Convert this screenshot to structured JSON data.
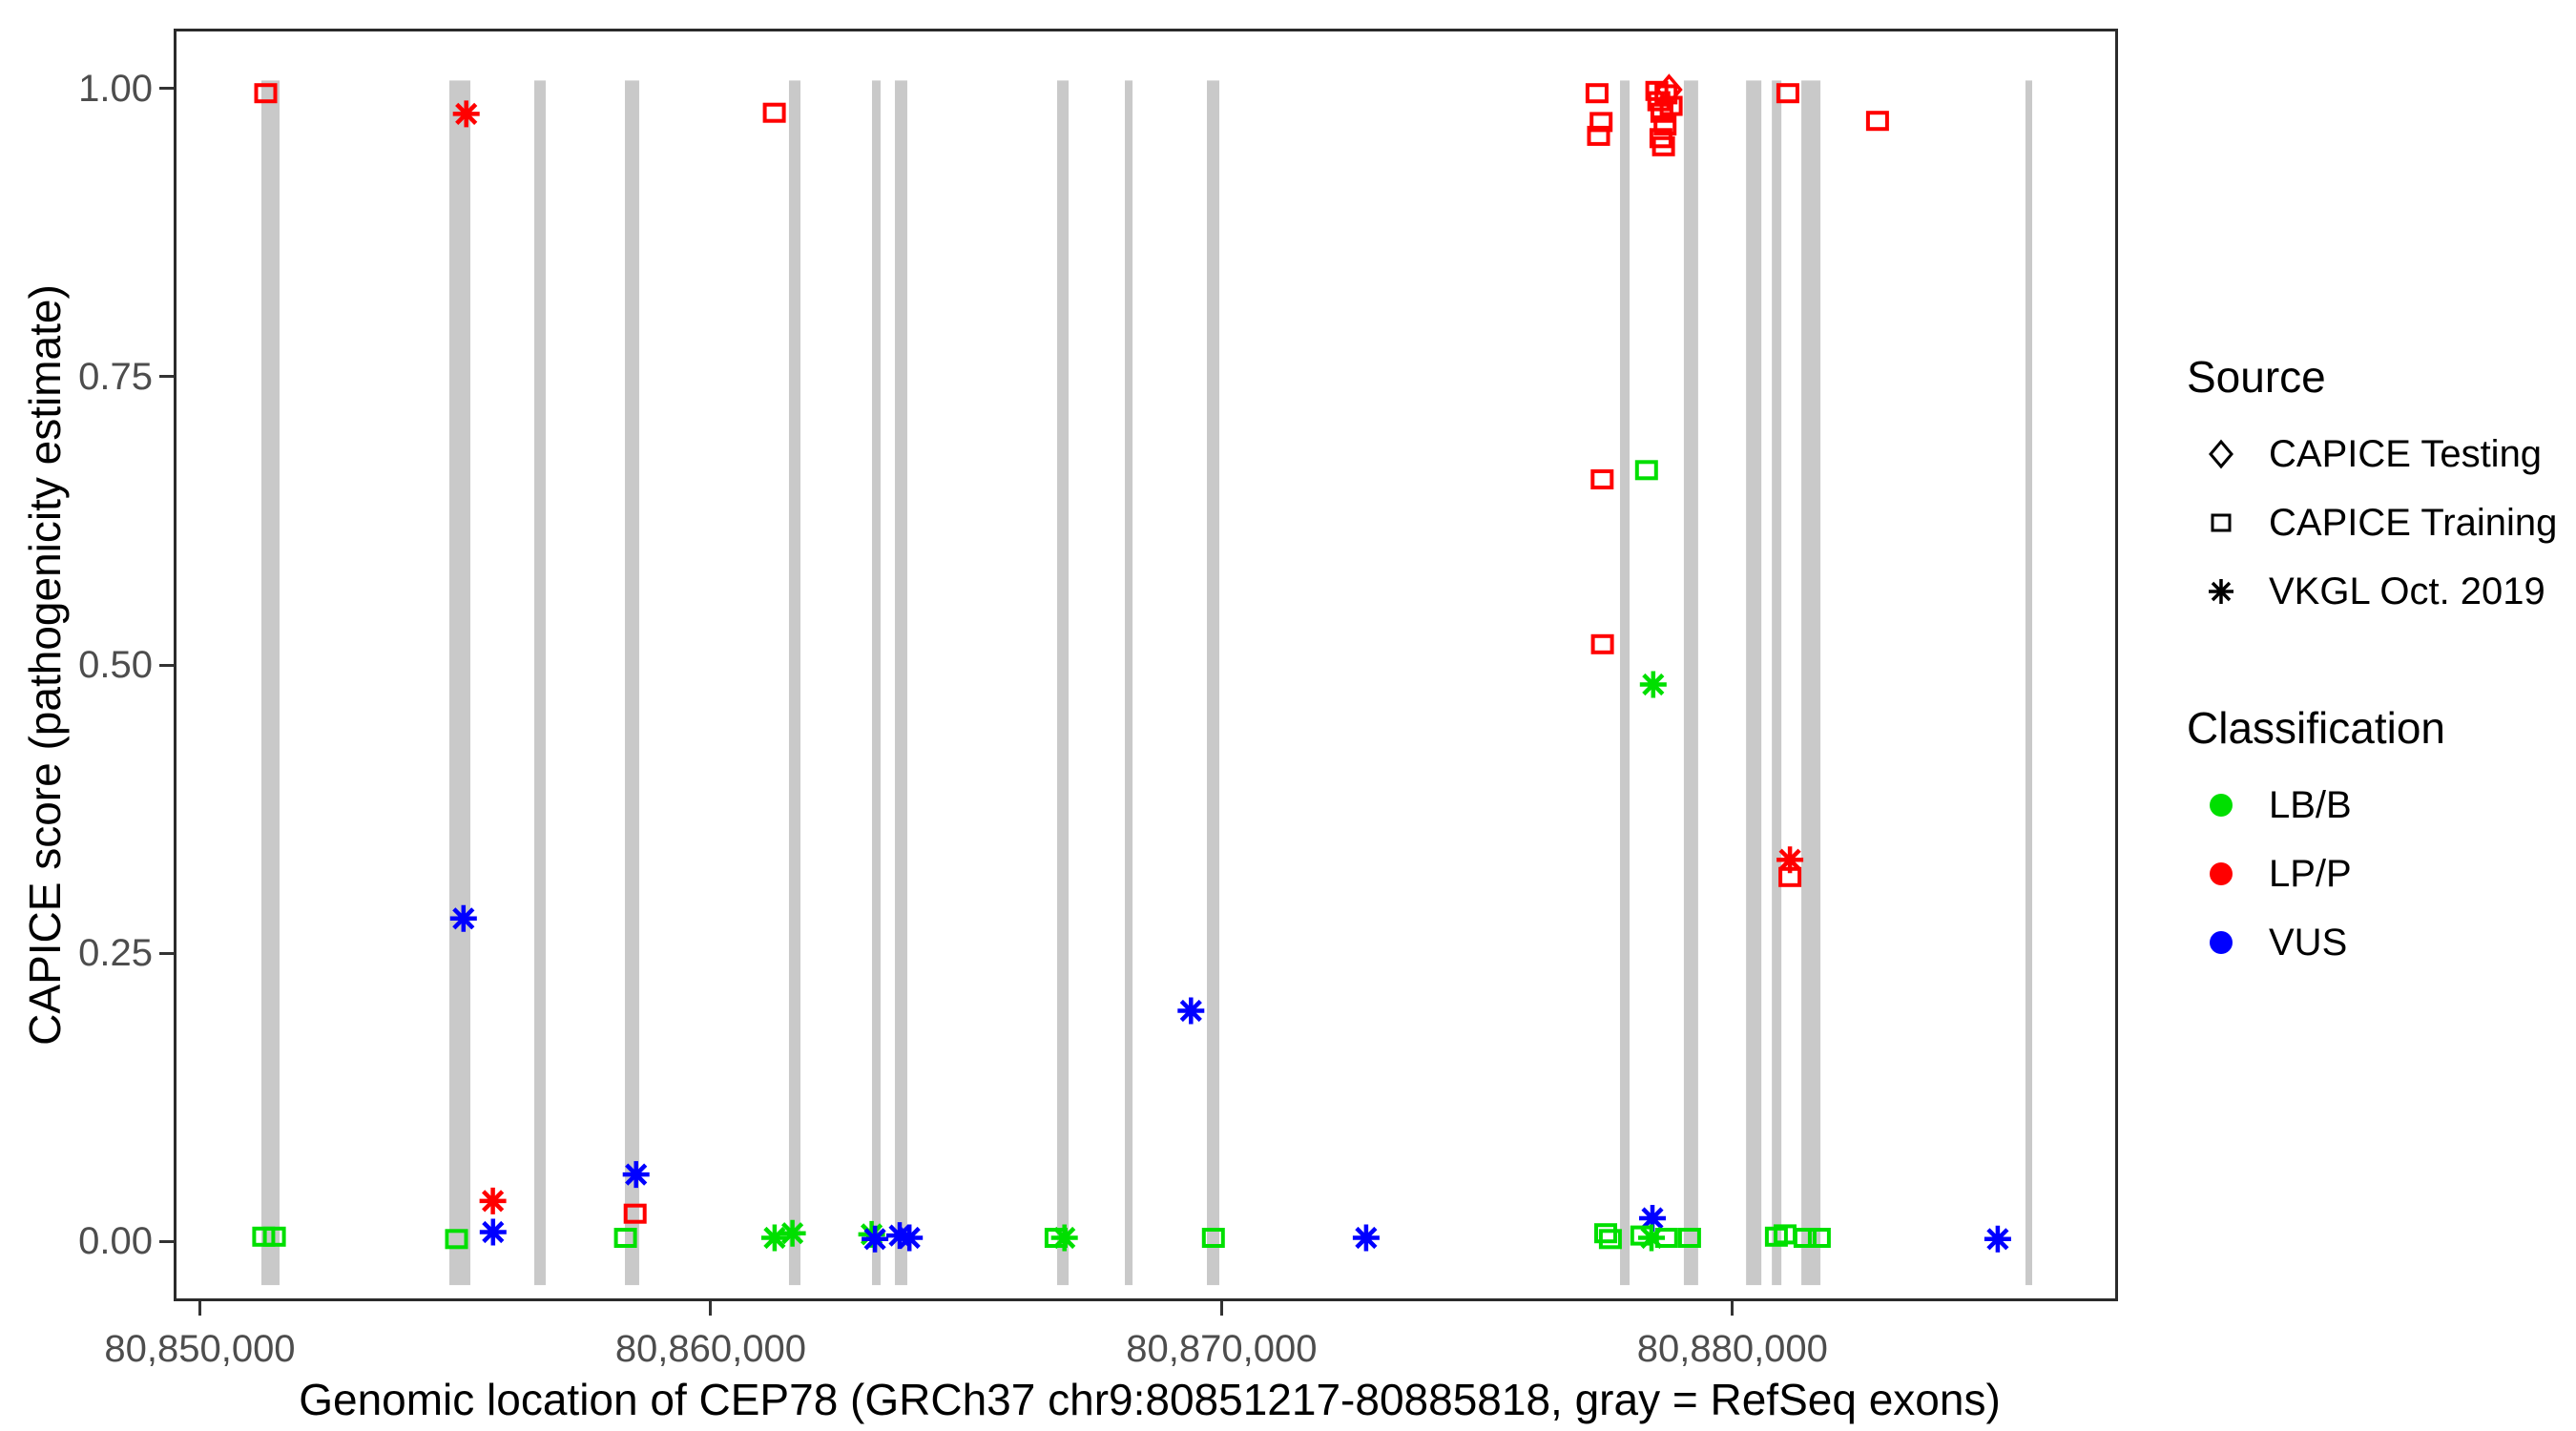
{
  "figure": {
    "x_axis": {
      "title": "Genomic location of CEP78 (GRCh37 chr9:80851217-80885818, gray = RefSeq exons)",
      "tick_labels": [
        "80,850,000",
        "80,860,000",
        "80,870,000",
        "80,880,000"
      ]
    },
    "y_axis": {
      "title": "CAPICE score (pathogenicity estimate)",
      "tick_labels": [
        "0.00",
        "0.25",
        "0.50",
        "0.75",
        "1.00"
      ]
    }
  },
  "legend": {
    "source": {
      "title": "Source",
      "items": [
        {
          "label": "CAPICE Testing",
          "marker": "diamond"
        },
        {
          "label": "CAPICE Training",
          "marker": "square"
        },
        {
          "label": "VKGL Oct. 2019",
          "marker": "asterisk"
        }
      ]
    },
    "classification": {
      "title": "Classification",
      "items": [
        {
          "label": "LB/B",
          "color": "#00DF00"
        },
        {
          "label": "LP/P",
          "color": "#FF0000"
        },
        {
          "label": "VUS",
          "color": "#0000FF"
        }
      ]
    }
  },
  "chart_data": {
    "type": "scatter",
    "xlabel": "Genomic location of CEP78 (GRCh37 chr9:80851217-80885818, gray = RefSeq exons)",
    "ylabel": "CAPICE score (pathogenicity estimate)",
    "xlim": [
      80849487,
      80887548
    ],
    "ylim": [
      -0.052,
      1.052
    ],
    "x_ticks": [
      {
        "value": 80850000,
        "label": "80,850,000"
      },
      {
        "value": 80860000,
        "label": "80,860,000"
      },
      {
        "value": 80870000,
        "label": "80,870,000"
      },
      {
        "value": 80880000,
        "label": "80,880,000"
      }
    ],
    "y_ticks": [
      {
        "value": 0.0,
        "label": "0.00"
      },
      {
        "value": 0.25,
        "label": "0.25"
      },
      {
        "value": 0.5,
        "label": "0.50"
      },
      {
        "value": 0.75,
        "label": "0.75"
      },
      {
        "value": 1.0,
        "label": "1.00"
      }
    ],
    "colors": {
      "LB/B": "#00DF00",
      "LP/P": "#FF0000",
      "VUS": "#0000FF"
    },
    "exon_color": "#C9C9C9",
    "border_color": "#2B2B2B",
    "exon_band": {
      "ymin": -0.038,
      "ymax": 1.007
    },
    "exons": [
      [
        80851205,
        80851560
      ],
      [
        80854884,
        80855295
      ],
      [
        80856546,
        80856770
      ],
      [
        80858320,
        80858600
      ],
      [
        80861532,
        80861757
      ],
      [
        80863157,
        80863325
      ],
      [
        80863605,
        80863848
      ],
      [
        80866781,
        80867005
      ],
      [
        80868107,
        80868257
      ],
      [
        80869713,
        80869956
      ],
      [
        80877799,
        80877986
      ],
      [
        80879049,
        80879329
      ],
      [
        80880267,
        80880566
      ],
      [
        80880771,
        80880958
      ],
      [
        80881349,
        80881723
      ],
      [
        80885736,
        80885867
      ]
    ],
    "points": [
      {
        "bp": 80851289,
        "score": 0.996,
        "source": "CAPICE Training",
        "classification": "LP/P"
      },
      {
        "bp": 80851250,
        "score": 0.004,
        "source": "CAPICE Training",
        "classification": "LB/B"
      },
      {
        "bp": 80851460,
        "score": 0.004,
        "source": "CAPICE Training",
        "classification": "LB/B"
      },
      {
        "bp": 80855025,
        "score": 0.002,
        "source": "CAPICE Training",
        "classification": "LB/B"
      },
      {
        "bp": 80855160,
        "score": 0.28,
        "source": "VKGL Oct. 2019",
        "classification": "VUS"
      },
      {
        "bp": 80855215,
        "score": 0.978,
        "source": "VKGL Oct. 2019",
        "classification": "LP/P"
      },
      {
        "bp": 80855735,
        "score": 0.035,
        "source": "VKGL Oct. 2019",
        "classification": "LP/P"
      },
      {
        "bp": 80855740,
        "score": 0.008,
        "source": "VKGL Oct. 2019",
        "classification": "VUS"
      },
      {
        "bp": 80858331,
        "score": 0.003,
        "source": "CAPICE Training",
        "classification": "LB/B"
      },
      {
        "bp": 80858520,
        "score": 0.024,
        "source": "CAPICE Training",
        "classification": "LP/P"
      },
      {
        "bp": 80858540,
        "score": 0.058,
        "source": "VKGL Oct. 2019",
        "classification": "VUS"
      },
      {
        "bp": 80861245,
        "score": 0.979,
        "source": "CAPICE Training",
        "classification": "LP/P"
      },
      {
        "bp": 80861250,
        "score": 0.003,
        "source": "VKGL Oct. 2019",
        "classification": "LB/B"
      },
      {
        "bp": 80861600,
        "score": 0.007,
        "source": "VKGL Oct. 2019",
        "classification": "LB/B"
      },
      {
        "bp": 80863150,
        "score": 0.006,
        "source": "VKGL Oct. 2019",
        "classification": "LB/B"
      },
      {
        "bp": 80863215,
        "score": 0.002,
        "source": "VKGL Oct. 2019",
        "classification": "VUS"
      },
      {
        "bp": 80863700,
        "score": 0.005,
        "source": "VKGL Oct. 2019",
        "classification": "VUS"
      },
      {
        "bp": 80863890,
        "score": 0.003,
        "source": "VKGL Oct. 2019",
        "classification": "VUS"
      },
      {
        "bp": 80866760,
        "score": 0.003,
        "source": "CAPICE Training",
        "classification": "LB/B"
      },
      {
        "bp": 80866925,
        "score": 0.003,
        "source": "VKGL Oct. 2019",
        "classification": "LB/B"
      },
      {
        "bp": 80869400,
        "score": 0.2,
        "source": "VKGL Oct. 2019",
        "classification": "VUS"
      },
      {
        "bp": 80869840,
        "score": 0.003,
        "source": "CAPICE Training",
        "classification": "LB/B"
      },
      {
        "bp": 80872830,
        "score": 0.003,
        "source": "VKGL Oct. 2019",
        "classification": "VUS"
      },
      {
        "bp": 80877350,
        "score": 0.996,
        "source": "CAPICE Training",
        "classification": "LP/P"
      },
      {
        "bp": 80877430,
        "score": 0.971,
        "source": "CAPICE Training",
        "classification": "LP/P"
      },
      {
        "bp": 80877380,
        "score": 0.959,
        "source": "CAPICE Training",
        "classification": "LP/P"
      },
      {
        "bp": 80877450,
        "score": 0.661,
        "source": "CAPICE Training",
        "classification": "LP/P"
      },
      {
        "bp": 80877455,
        "score": 0.518,
        "source": "CAPICE Training",
        "classification": "LP/P"
      },
      {
        "bp": 80877520,
        "score": 0.007,
        "source": "CAPICE Training",
        "classification": "LB/B"
      },
      {
        "bp": 80877610,
        "score": 0.002,
        "source": "CAPICE Training",
        "classification": "LB/B"
      },
      {
        "bp": 80878760,
        "score": 0.999,
        "source": "CAPICE Testing",
        "classification": "LP/P"
      },
      {
        "bp": 80878520,
        "score": 0.998,
        "source": "CAPICE Training",
        "classification": "LP/P"
      },
      {
        "bp": 80878700,
        "score": 0.995,
        "source": "CAPICE Training",
        "classification": "LP/P"
      },
      {
        "bp": 80878560,
        "score": 0.989,
        "source": "CAPICE Training",
        "classification": "LP/P"
      },
      {
        "bp": 80878800,
        "score": 0.985,
        "source": "CAPICE Training",
        "classification": "LP/P"
      },
      {
        "bp": 80878620,
        "score": 0.979,
        "source": "CAPICE Training",
        "classification": "LP/P"
      },
      {
        "bp": 80878680,
        "score": 0.968,
        "source": "CAPICE Training",
        "classification": "LP/P"
      },
      {
        "bp": 80878600,
        "score": 0.957,
        "source": "CAPICE Training",
        "classification": "LP/P"
      },
      {
        "bp": 80878650,
        "score": 0.95,
        "source": "CAPICE Training",
        "classification": "LP/P"
      },
      {
        "bp": 80878319,
        "score": 0.669,
        "source": "CAPICE Training",
        "classification": "LB/B"
      },
      {
        "bp": 80878450,
        "score": 0.483,
        "source": "VKGL Oct. 2019",
        "classification": "LB/B"
      },
      {
        "bp": 80878435,
        "score": 0.02,
        "source": "VKGL Oct. 2019",
        "classification": "VUS"
      },
      {
        "bp": 80878415,
        "score": 0.003,
        "source": "VKGL Oct. 2019",
        "classification": "LB/B"
      },
      {
        "bp": 80878225,
        "score": 0.005,
        "source": "CAPICE Training",
        "classification": "LB/B"
      },
      {
        "bp": 80878711,
        "score": 0.003,
        "source": "CAPICE Training",
        "classification": "LB/B"
      },
      {
        "bp": 80879160,
        "score": 0.003,
        "source": "CAPICE Training",
        "classification": "LB/B"
      },
      {
        "bp": 80881084,
        "score": 0.996,
        "source": "CAPICE Training",
        "classification": "LP/P"
      },
      {
        "bp": 80881125,
        "score": 0.331,
        "source": "VKGL Oct. 2019",
        "classification": "LP/P"
      },
      {
        "bp": 80881125,
        "score": 0.316,
        "source": "CAPICE Training",
        "classification": "LP/P"
      },
      {
        "bp": 80880860,
        "score": 0.004,
        "source": "CAPICE Training",
        "classification": "LB/B"
      },
      {
        "bp": 80881030,
        "score": 0.006,
        "source": "CAPICE Training",
        "classification": "LB/B"
      },
      {
        "bp": 80881420,
        "score": 0.003,
        "source": "CAPICE Training",
        "classification": "LB/B"
      },
      {
        "bp": 80881700,
        "score": 0.003,
        "source": "CAPICE Training",
        "classification": "LB/B"
      },
      {
        "bp": 80882840,
        "score": 0.972,
        "source": "CAPICE Training",
        "classification": "LP/P"
      },
      {
        "bp": 80885193,
        "score": 0.002,
        "source": "VKGL Oct. 2019",
        "classification": "VUS"
      }
    ]
  }
}
